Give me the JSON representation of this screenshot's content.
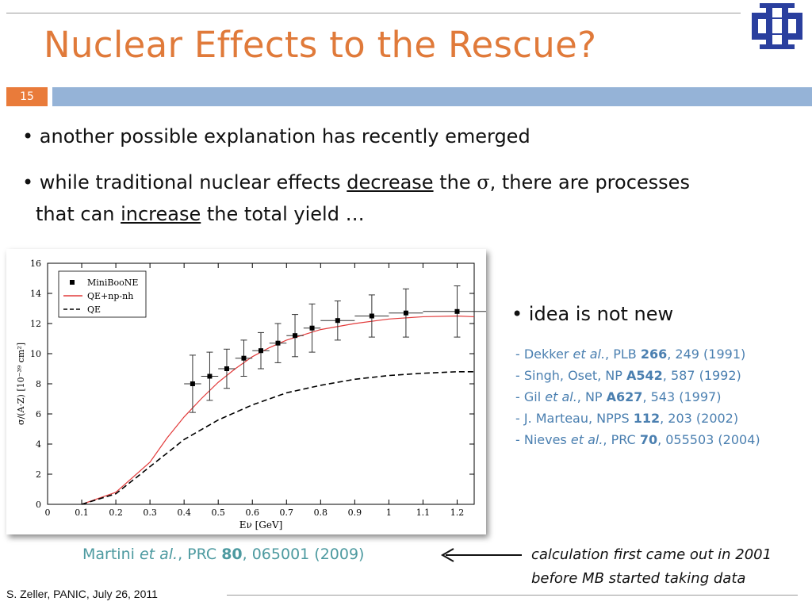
{
  "slide": {
    "title": "Nuclear Effects to the Rescue?",
    "number": "15",
    "bullets": [
      {
        "parts": [
          "another possible explanation has recently emerged"
        ]
      },
      {
        "line1_a": "while traditional nuclear effects ",
        "line1_u": "decrease",
        "line1_b": " the ",
        "sigma": "σ",
        "line1_c": ", there are processes",
        "line2_a": "that can ",
        "line2_u": "increase",
        "line2_b": " the total yield …"
      }
    ],
    "idea": "idea is not new",
    "references": [
      {
        "pre": "- Dekker ",
        "etal": "et al.",
        "mid": ", PLB ",
        "vol": "266",
        "post": ", 249 (1991)"
      },
      {
        "pre": "- Singh, Oset, NP ",
        "etal": "",
        "mid": "",
        "vol": "A542",
        "post": ", 587 (1992)"
      },
      {
        "pre": "- Gil ",
        "etal": "et al.",
        "mid": ", NP ",
        "vol": "A627",
        "post": ", 543 (1997)"
      },
      {
        "pre": "- J. Marteau, NPPS ",
        "etal": "",
        "mid": "",
        "vol": "112",
        "post": ", 203 (2002)"
      },
      {
        "pre": "- Nieves ",
        "etal": "et al.",
        "mid": ", PRC ",
        "vol": "70",
        "post": ", 055503 (2004)"
      }
    ],
    "citation": {
      "pre": "Martini ",
      "etal": "et al.",
      "mid": ", PRC ",
      "vol": "80",
      "post": ", 065001 (2009)"
    },
    "note_line1": "calculation first came out in 2001",
    "note_line2": "before MB started taking data",
    "footer": "S. Zeller, PANIC, July 26, 2011",
    "colors": {
      "title": "#e07a3a",
      "number_box": "#e97b3a",
      "bar": "#95b3d7",
      "references": "#4a7fb0",
      "citation": "#4d9aa0",
      "logo": "#2a3f9e"
    }
  },
  "chart_data": {
    "type": "line",
    "xlabel": "Eν [GeV]",
    "ylabel": "σ/(A·Z) [10⁻³⁹ cm²]",
    "xlim": [
      0,
      1.25
    ],
    "ylim": [
      0,
      16
    ],
    "xticks": [
      0,
      0.1,
      0.2,
      0.3,
      0.4,
      0.5,
      0.6,
      0.7,
      0.8,
      0.9,
      1,
      1.1,
      1.2
    ],
    "yticks": [
      0,
      2,
      4,
      6,
      8,
      10,
      12,
      14,
      16
    ],
    "legend_position": "top-left",
    "series": [
      {
        "name": "MiniBooNE",
        "kind": "points",
        "color": "#000000",
        "x": [
          0.425,
          0.475,
          0.525,
          0.575,
          0.625,
          0.675,
          0.725,
          0.775,
          0.85,
          0.95,
          1.05,
          1.2
        ],
        "y": [
          8.0,
          8.5,
          9.0,
          9.7,
          10.2,
          10.7,
          11.2,
          11.7,
          12.2,
          12.5,
          12.7,
          12.8
        ],
        "yerr": [
          1.9,
          1.6,
          1.3,
          1.2,
          1.2,
          1.3,
          1.4,
          1.6,
          1.3,
          1.4,
          1.6,
          1.7
        ],
        "xerr": [
          0.025,
          0.025,
          0.025,
          0.025,
          0.025,
          0.025,
          0.025,
          0.025,
          0.05,
          0.05,
          0.05,
          0.1
        ]
      },
      {
        "name": "QE+np-nh",
        "kind": "line",
        "color": "#e23b3b",
        "x": [
          0.1,
          0.2,
          0.3,
          0.35,
          0.4,
          0.45,
          0.5,
          0.55,
          0.6,
          0.65,
          0.7,
          0.8,
          0.9,
          1.0,
          1.1,
          1.2,
          1.25
        ],
        "y": [
          0.0,
          0.8,
          2.8,
          4.4,
          5.8,
          7.0,
          8.1,
          9.0,
          9.8,
          10.4,
          10.9,
          11.6,
          12.0,
          12.3,
          12.45,
          12.5,
          12.45
        ]
      },
      {
        "name": "QE",
        "kind": "dashed",
        "color": "#000000",
        "x": [
          0.1,
          0.2,
          0.3,
          0.4,
          0.5,
          0.6,
          0.7,
          0.8,
          0.9,
          1.0,
          1.1,
          1.2,
          1.25
        ],
        "y": [
          0.0,
          0.7,
          2.5,
          4.3,
          5.6,
          6.6,
          7.4,
          7.9,
          8.3,
          8.55,
          8.7,
          8.8,
          8.8
        ]
      }
    ]
  }
}
